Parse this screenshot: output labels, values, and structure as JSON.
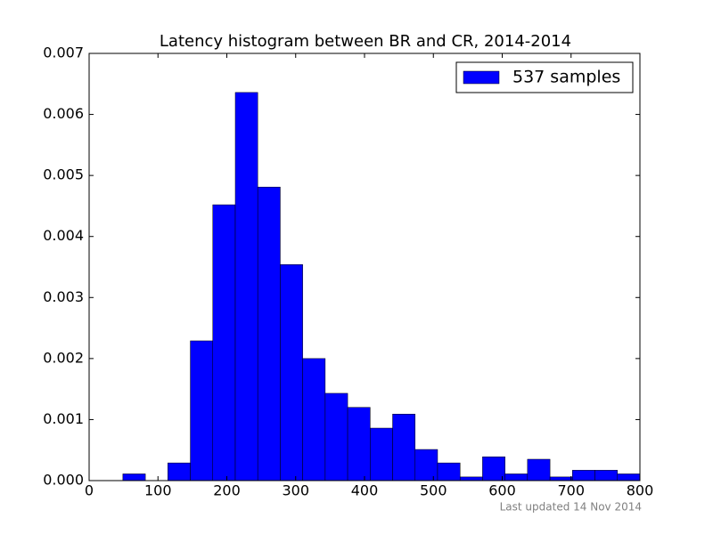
{
  "chart_data": {
    "type": "histogram",
    "title": "Latency histogram between BR and CR, 2014-2014",
    "bins": [
      49,
      81.7,
      114.3,
      147,
      179.6,
      212.3,
      244.9,
      277.6,
      310.2,
      342.9,
      375.5,
      408.2,
      440.8,
      473.5,
      506.1,
      538.8,
      571.4,
      604.1,
      636.7,
      669.4,
      702,
      734.7,
      767.3,
      800
    ],
    "series": [
      {
        "name": "537 samples",
        "color": "#0000ff",
        "values": [
          0.00011,
          0,
          0.00029,
          0.00229,
          0.00452,
          0.00636,
          0.00481,
          0.00354,
          0.002,
          0.00143,
          0.0012,
          0.00086,
          0.00109,
          0.00051,
          0.00029,
          6e-05,
          0.00039,
          0.00011,
          0.00035,
          6e-05,
          0.00017,
          0.00017,
          0.00011
        ]
      }
    ],
    "xlim": [
      0,
      800
    ],
    "xticks": [
      0,
      100,
      200,
      300,
      400,
      500,
      600,
      700,
      800
    ],
    "ylim": [
      0,
      0.007
    ],
    "yticks": [
      {
        "value": 0,
        "label": "0.000"
      },
      {
        "value": 0.001,
        "label": "0.001"
      },
      {
        "value": 0.002,
        "label": "0.002"
      },
      {
        "value": 0.003,
        "label": "0.003"
      },
      {
        "value": 0.004,
        "label": "0.004"
      },
      {
        "value": 0.005,
        "label": "0.005"
      },
      {
        "value": 0.006,
        "label": "0.006"
      },
      {
        "value": 0.007,
        "label": "0.007"
      }
    ],
    "legend": "upper right",
    "footnote": "Last updated 14 Nov 2014"
  }
}
